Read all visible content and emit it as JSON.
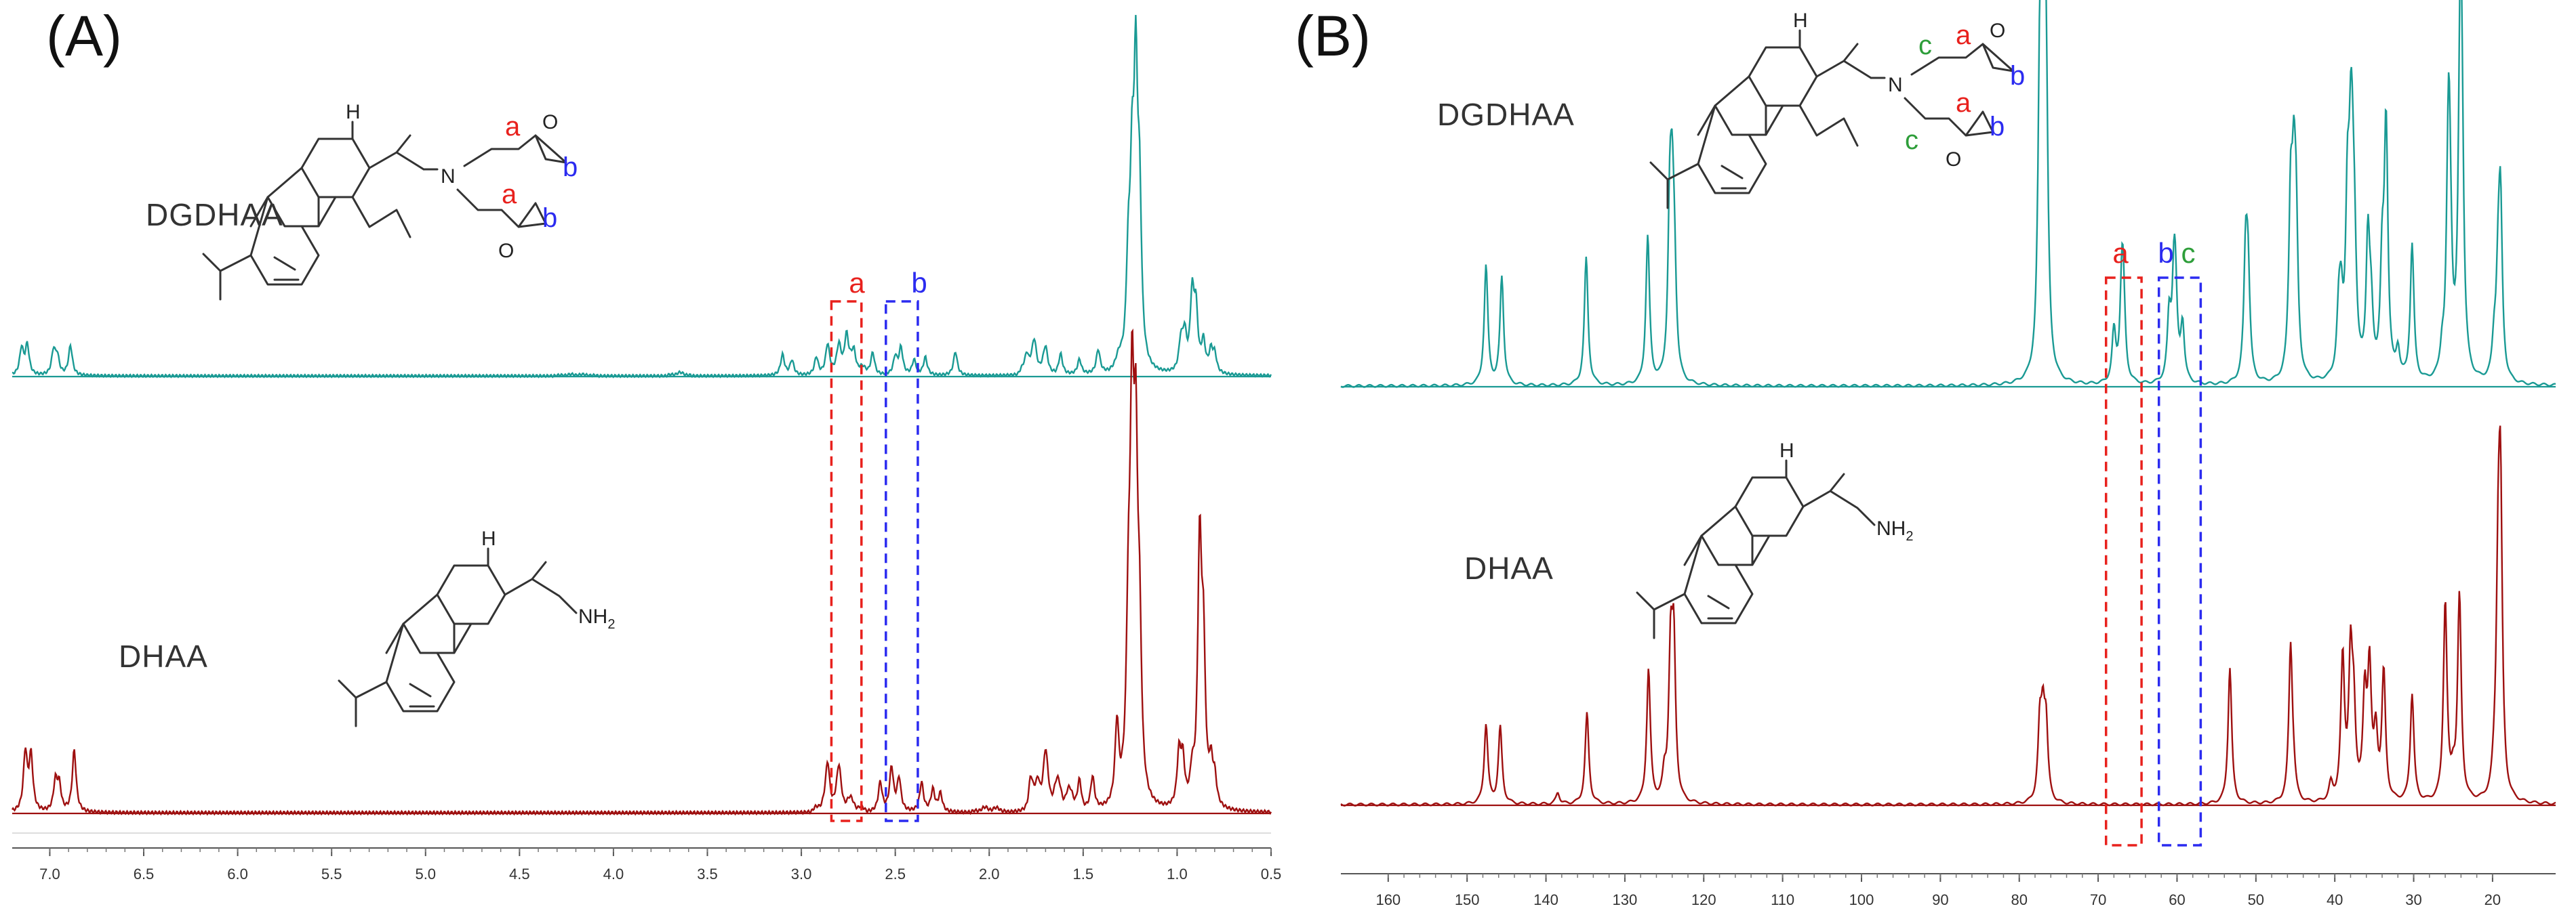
{
  "chart_data": [
    {
      "type": "line",
      "panel_label": "(A)",
      "x_direction": "reversed",
      "xlim": [
        7.2,
        0.5
      ],
      "x_ticks": [
        "7.0",
        "6.5",
        "6.0",
        "5.5",
        "5.0",
        "4.5",
        "4.0",
        "3.5",
        "3.0",
        "2.5",
        "2.0",
        "1.5",
        "1.0",
        "0.5"
      ],
      "series": [
        {
          "name": "DGDHAA",
          "color": "#1a9a94",
          "peaks": [
            [
              7.15,
              0.09
            ],
            [
              7.12,
              0.1
            ],
            [
              6.98,
              0.08
            ],
            [
              6.96,
              0.06
            ],
            [
              6.89,
              0.1
            ],
            [
              3.1,
              0.07
            ],
            [
              3.05,
              0.05
            ],
            [
              2.92,
              0.06
            ],
            [
              2.86,
              0.09
            ],
            [
              2.8,
              0.07
            ],
            [
              2.76,
              0.12
            ],
            [
              2.72,
              0.06
            ],
            [
              2.62,
              0.07
            ],
            [
              2.5,
              0.06
            ],
            [
              2.47,
              0.09
            ],
            [
              2.4,
              0.05
            ],
            [
              2.34,
              0.06
            ],
            [
              2.18,
              0.08
            ],
            [
              1.8,
              0.06
            ],
            [
              1.76,
              0.07
            ],
            [
              1.7,
              0.06
            ],
            [
              1.62,
              0.07
            ],
            [
              1.52,
              0.05
            ],
            [
              1.42,
              0.08
            ],
            [
              1.26,
              0.3
            ],
            [
              1.24,
              0.55
            ],
            [
              1.22,
              0.9
            ],
            [
              1.2,
              0.5
            ],
            [
              0.98,
              0.1
            ],
            [
              0.96,
              0.12
            ],
            [
              0.92,
              0.25
            ],
            [
              0.9,
              0.2
            ],
            [
              0.86,
              0.1
            ],
            [
              0.82,
              0.07
            ],
            [
              0.8,
              0.06
            ]
          ],
          "humps": [
            [
              2.75,
              0.3,
              0.035
            ],
            [
              1.75,
              0.2,
              0.05
            ],
            [
              1.3,
              0.12,
              0.04
            ],
            [
              3.65,
              0.14,
              0.012
            ],
            [
              4.2,
              0.25,
              0.006
            ]
          ]
        },
        {
          "name": "DHAA",
          "color": "#9e1010",
          "peaks": [
            [
              7.13,
              0.16
            ],
            [
              7.1,
              0.15
            ],
            [
              6.97,
              0.08
            ],
            [
              6.95,
              0.07
            ],
            [
              6.87,
              0.17
            ],
            [
              2.86,
              0.1
            ],
            [
              2.8,
              0.08
            ],
            [
              2.58,
              0.08
            ],
            [
              2.52,
              0.12
            ],
            [
              2.48,
              0.09
            ],
            [
              2.36,
              0.08
            ],
            [
              2.3,
              0.06
            ],
            [
              2.26,
              0.05
            ],
            [
              1.78,
              0.08
            ],
            [
              1.74,
              0.06
            ],
            [
              1.7,
              0.09
            ],
            [
              1.52,
              0.07
            ],
            [
              1.45,
              0.09
            ],
            [
              1.32,
              0.22
            ],
            [
              1.26,
              0.38
            ],
            [
              1.24,
              0.9
            ],
            [
              1.22,
              0.82
            ],
            [
              1.2,
              0.4
            ],
            [
              0.99,
              0.14
            ],
            [
              0.97,
              0.12
            ],
            [
              0.92,
              0.08
            ],
            [
              0.88,
              0.7
            ],
            [
              0.86,
              0.4
            ],
            [
              0.82,
              0.1
            ],
            [
              0.8,
              0.07
            ]
          ],
          "humps": [
            [
              2.8,
              0.3,
              0.05
            ],
            [
              1.65,
              0.3,
              0.09
            ],
            [
              1.25,
              0.1,
              0.08
            ],
            [
              2.0,
              0.2,
              0.015
            ]
          ]
        }
      ],
      "annotations": [
        {
          "label": "a",
          "x_range": [
            2.84,
            2.68
          ],
          "color": "#e8211d"
        },
        {
          "label": "b",
          "x_range": [
            2.55,
            2.38
          ],
          "color": "#2b2bf0"
        }
      ]
    },
    {
      "type": "line",
      "panel_label": "(B)",
      "x_direction": "reversed",
      "xlim": [
        166,
        12
      ],
      "x_ticks": [
        "160",
        "150",
        "140",
        "130",
        "120",
        "110",
        "100",
        "90",
        "80",
        "70",
        "60",
        "50",
        "40",
        "30",
        "20"
      ],
      "series": [
        {
          "name": "DGDHAA",
          "color": "#1a9a94",
          "peaks": [
            [
              147.6,
              0.42
            ],
            [
              145.6,
              0.38
            ],
            [
              134.9,
              0.45
            ],
            [
              127.1,
              0.52
            ],
            [
              124.3,
              0.54
            ],
            [
              124.0,
              0.5
            ],
            [
              123.7,
              0.3
            ],
            [
              77.4,
              0.95
            ],
            [
              77.0,
              1.0
            ],
            [
              76.6,
              0.95
            ],
            [
              68.0,
              0.18
            ],
            [
              67.0,
              0.3
            ],
            [
              66.8,
              0.25
            ],
            [
              61.0,
              0.22
            ],
            [
              60.4,
              0.3
            ],
            [
              60.2,
              0.25
            ],
            [
              59.3,
              0.2
            ],
            [
              51.3,
              0.42
            ],
            [
              51.0,
              0.35
            ],
            [
              45.6,
              0.58
            ],
            [
              45.2,
              0.55
            ],
            [
              44.9,
              0.45
            ],
            [
              39.5,
              0.2
            ],
            [
              39.2,
              0.22
            ],
            [
              38.4,
              0.55
            ],
            [
              38.0,
              0.5
            ],
            [
              37.8,
              0.45
            ],
            [
              37.5,
              0.35
            ],
            [
              35.8,
              0.48
            ],
            [
              35.4,
              0.2
            ],
            [
              34.0,
              0.35
            ],
            [
              33.5,
              0.88
            ],
            [
              32.0,
              0.1
            ],
            [
              30.2,
              0.48
            ],
            [
              26.4,
              0.08
            ],
            [
              25.6,
              0.75
            ],
            [
              25.4,
              0.4
            ],
            [
              24.1,
              1.05
            ],
            [
              23.9,
              0.65
            ],
            [
              19.8,
              0.12
            ],
            [
              19.3,
              0.3
            ],
            [
              19.0,
              0.6
            ]
          ],
          "humps": []
        },
        {
          "name": "DHAA",
          "color": "#9e1010",
          "peaks": [
            [
              147.6,
              0.28
            ],
            [
              145.8,
              0.27
            ],
            [
              138.5,
              0.04
            ],
            [
              134.8,
              0.32
            ],
            [
              127.0,
              0.47
            ],
            [
              125.0,
              0.08
            ],
            [
              124.2,
              0.5
            ],
            [
              123.8,
              0.52
            ],
            [
              77.4,
              0.25
            ],
            [
              77.0,
              0.26
            ],
            [
              76.6,
              0.25
            ],
            [
              53.3,
              0.48
            ],
            [
              45.6,
              0.55
            ],
            [
              45.2,
              0.06
            ],
            [
              40.5,
              0.06
            ],
            [
              39.0,
              0.5
            ],
            [
              38.0,
              0.48
            ],
            [
              37.6,
              0.28
            ],
            [
              36.2,
              0.35
            ],
            [
              35.6,
              0.45
            ],
            [
              34.8,
              0.22
            ],
            [
              33.8,
              0.45
            ],
            [
              30.2,
              0.38
            ],
            [
              26.0,
              0.7
            ],
            [
              25.0,
              0.07
            ],
            [
              24.2,
              0.72
            ],
            [
              19.8,
              0.06
            ],
            [
              19.3,
              0.65
            ],
            [
              19.0,
              1.0
            ]
          ],
          "humps": []
        }
      ],
      "annotations": [
        {
          "label": "a",
          "x_range": [
            69.0,
            64.5
          ],
          "color": "#e8211d"
        },
        {
          "label": "b",
          "x_range": [
            62.3,
            57.0
          ],
          "color": "#2b2bf0"
        },
        {
          "label": "c",
          "x_range": [
            60.5,
            58.5
          ],
          "color": "#2e9e3a"
        }
      ]
    }
  ],
  "labels": {
    "panel_a": "(A)",
    "panel_b": "(B)",
    "a_top": "DGDHAA",
    "a_bottom": "DHAA",
    "b_top": "DGDHAA",
    "b_bottom": "DHAA",
    "peak_a": "a",
    "peak_b": "b",
    "peak_c": "c"
  },
  "structures": {
    "atom_h": "H",
    "atom_n": "N",
    "atom_o": "O",
    "amine": "NH",
    "amine_sub": "2",
    "tag_a": "a",
    "tag_b": "b",
    "tag_c": "c"
  },
  "colors": {
    "teal": "#1a9a94",
    "dark_red": "#9e1010",
    "red": "#e8211d",
    "blue": "#2b2bf0",
    "green": "#2e9e3a"
  }
}
